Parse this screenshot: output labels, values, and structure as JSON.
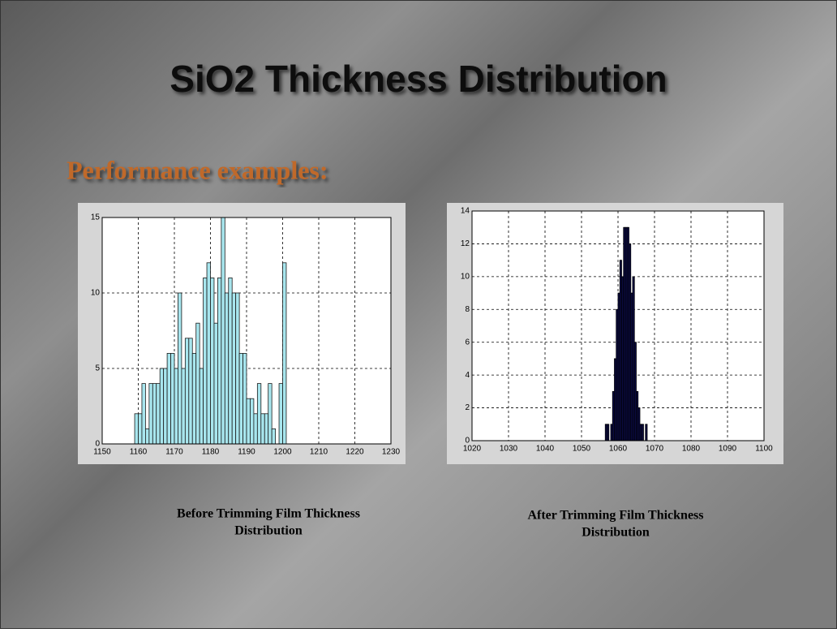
{
  "title": "SiO2 Thickness Distribution",
  "subtitle": "Performance examples:",
  "chart_data": [
    {
      "type": "histogram",
      "color": "#a8e6ee",
      "edge": "#1a1a1a",
      "grid": true,
      "bins": [
        1159,
        1160,
        1161,
        1162,
        1163,
        1164,
        1165,
        1166,
        1167,
        1168,
        1169,
        1170,
        1171,
        1172,
        1173,
        1174,
        1175,
        1176,
        1177,
        1178,
        1179,
        1180,
        1181,
        1182,
        1183,
        1184,
        1185,
        1186,
        1187,
        1188,
        1189,
        1190,
        1191,
        1192,
        1193,
        1194,
        1195,
        1196,
        1197,
        1198,
        1199,
        1200,
        1201
      ],
      "counts": [
        2,
        2,
        4,
        1,
        4,
        4,
        4,
        5,
        5,
        6,
        6,
        5,
        10,
        5,
        7,
        7,
        6,
        8,
        5,
        11,
        12,
        11,
        8,
        11,
        15,
        10,
        11,
        10,
        10,
        6,
        6,
        3,
        3,
        2,
        4,
        2,
        2,
        4,
        1,
        0,
        4,
        12
      ],
      "xlim": [
        1150,
        1230
      ],
      "xticks": [
        1150,
        1160,
        1170,
        1180,
        1190,
        1200,
        1210,
        1220,
        1230
      ],
      "ylim": [
        0,
        15
      ],
      "yticks": [
        0,
        5,
        10,
        15
      ],
      "caption": [
        "Before Trimming  Film Thickness",
        "Distribution"
      ]
    },
    {
      "type": "histogram",
      "color": "#0b0b45",
      "edge": "#000000",
      "grid": true,
      "bins": [
        1056.5,
        1057,
        1057.5,
        1058,
        1058.5,
        1059,
        1059.5,
        1060,
        1060.5,
        1061,
        1061.5,
        1062,
        1062.5,
        1063,
        1063.5,
        1064,
        1064.5,
        1065,
        1065.5,
        1066,
        1066.5,
        1067,
        1067.5,
        1068
      ],
      "counts": [
        1,
        1,
        0,
        1,
        3,
        5,
        8,
        9,
        11,
        10,
        13,
        13,
        13,
        12,
        9,
        10,
        6,
        3,
        2,
        1,
        1,
        0,
        1
      ],
      "xlim": [
        1020,
        1100
      ],
      "xticks": [
        1020,
        1030,
        1040,
        1050,
        1060,
        1070,
        1080,
        1090,
        1100
      ],
      "ylim": [
        0,
        14
      ],
      "yticks": [
        0,
        2,
        4,
        6,
        8,
        10,
        12,
        14
      ],
      "caption": [
        "After Trimming Film Thickness",
        "Distribution"
      ]
    }
  ]
}
